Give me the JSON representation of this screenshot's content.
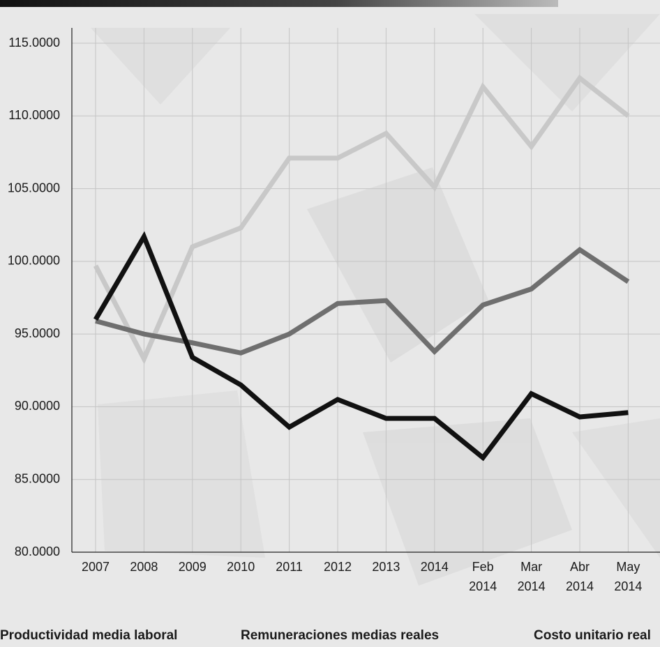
{
  "chart_data": {
    "type": "line",
    "categories": [
      "2007",
      "2008",
      "2009",
      "2010",
      "2011",
      "2012",
      "2013",
      "2014",
      "Feb 2014",
      "Mar 2014",
      "Abr 2014",
      "May 2014"
    ],
    "series": [
      {
        "name": "Productividad media laboral",
        "color": "#c8c8c8",
        "values": [
          99.7,
          93.3,
          101.0,
          102.3,
          107.1,
          107.1,
          108.8,
          105.1,
          112.0,
          107.9,
          112.6,
          110.0
        ]
      },
      {
        "name": "Remuneraciones medias reales",
        "color": "#6f6f6f",
        "values": [
          95.9,
          95.0,
          94.4,
          93.7,
          95.0,
          97.1,
          97.3,
          93.8,
          97.0,
          98.1,
          100.8,
          98.6
        ]
      },
      {
        "name": "Costo unitario real",
        "color": "#111111",
        "values": [
          96.0,
          101.7,
          93.4,
          91.5,
          88.6,
          90.5,
          89.2,
          89.2,
          86.5,
          90.9,
          89.3,
          89.6
        ]
      }
    ],
    "ylim": [
      80,
      115
    ],
    "yticks": [
      {
        "value": 80,
        "label": "80.0000"
      },
      {
        "value": 85,
        "label": "85.0000"
      },
      {
        "value": 90,
        "label": "90.0000"
      },
      {
        "value": 95,
        "label": "95.0000"
      },
      {
        "value": 100,
        "label": "100.0000"
      },
      {
        "value": 105,
        "label": "105.0000"
      },
      {
        "value": 110,
        "label": "110.0000"
      },
      {
        "value": 115,
        "label": "115.0000"
      }
    ],
    "grid": true
  }
}
